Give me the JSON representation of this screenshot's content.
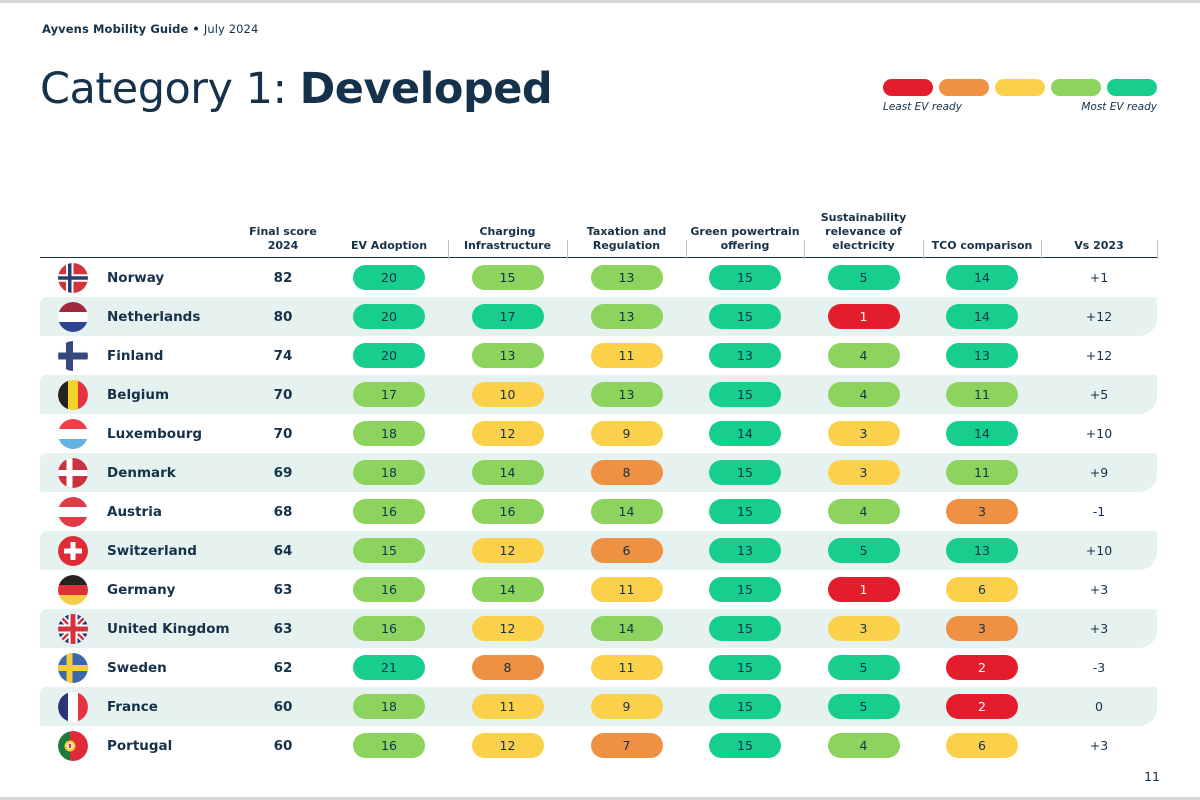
{
  "page": {
    "brand": "Ayvens Mobility Guide",
    "bullet": "•",
    "edition": "July 2024",
    "page_number": "11"
  },
  "title": {
    "prefix": "Category 1: ",
    "emphasis": "Developed"
  },
  "legend": {
    "least": "Least EV ready",
    "most": "Most EV ready",
    "order": [
      "l1",
      "l2",
      "l3",
      "l4",
      "l5"
    ]
  },
  "colors": {
    "l1": "#E41D2D",
    "l2": "#EE9143",
    "l3": "#FBD04B",
    "l4": "#8CD45E",
    "l5": "#17CE8C",
    "navy": "#15324A",
    "stripe": "#E6F2EF"
  },
  "table": {
    "columns": [
      {
        "key": "final_score",
        "lines": [
          "Final score",
          "2024"
        ]
      },
      {
        "key": "ev_adoption",
        "lines": [
          "EV Adoption"
        ]
      },
      {
        "key": "charging_infrastructure",
        "lines": [
          "Charging",
          "Infrastructure"
        ]
      },
      {
        "key": "taxation_and_regulation",
        "lines": [
          "Taxation and",
          "Regulation"
        ]
      },
      {
        "key": "green_powertrain_offering",
        "lines": [
          "Green powertrain",
          "offering"
        ]
      },
      {
        "key": "sustainability_relevance_of_electricity",
        "lines": [
          "Sustainability",
          "relevance of",
          "electricity"
        ]
      },
      {
        "key": "tco_comparison",
        "lines": [
          "TCO comparison"
        ]
      },
      {
        "key": "vs_2023",
        "lines": [
          "Vs 2023"
        ]
      }
    ],
    "rows": [
      {
        "country": "Norway",
        "flag": "norway",
        "final_score": "82",
        "scores": [
          {
            "value": "20",
            "level": "l5"
          },
          {
            "value": "15",
            "level": "l4"
          },
          {
            "value": "13",
            "level": "l4"
          },
          {
            "value": "15",
            "level": "l5"
          },
          {
            "value": "5",
            "level": "l5"
          },
          {
            "value": "14",
            "level": "l5"
          }
        ],
        "vs_2023": "+1"
      },
      {
        "country": "Netherlands",
        "flag": "netherlands",
        "final_score": "80",
        "scores": [
          {
            "value": "20",
            "level": "l5"
          },
          {
            "value": "17",
            "level": "l5"
          },
          {
            "value": "13",
            "level": "l4"
          },
          {
            "value": "15",
            "level": "l5"
          },
          {
            "value": "1",
            "level": "l1"
          },
          {
            "value": "14",
            "level": "l5"
          }
        ],
        "vs_2023": "+12"
      },
      {
        "country": "Finland",
        "flag": "finland",
        "final_score": "74",
        "scores": [
          {
            "value": "20",
            "level": "l5"
          },
          {
            "value": "13",
            "level": "l4"
          },
          {
            "value": "11",
            "level": "l3"
          },
          {
            "value": "13",
            "level": "l5"
          },
          {
            "value": "4",
            "level": "l4"
          },
          {
            "value": "13",
            "level": "l5"
          }
        ],
        "vs_2023": "+12"
      },
      {
        "country": "Belgium",
        "flag": "belgium",
        "final_score": "70",
        "scores": [
          {
            "value": "17",
            "level": "l4"
          },
          {
            "value": "10",
            "level": "l3"
          },
          {
            "value": "13",
            "level": "l4"
          },
          {
            "value": "15",
            "level": "l5"
          },
          {
            "value": "4",
            "level": "l4"
          },
          {
            "value": "11",
            "level": "l4"
          }
        ],
        "vs_2023": "+5"
      },
      {
        "country": "Luxembourg",
        "flag": "luxembourg",
        "final_score": "70",
        "scores": [
          {
            "value": "18",
            "level": "l4"
          },
          {
            "value": "12",
            "level": "l3"
          },
          {
            "value": "9",
            "level": "l3"
          },
          {
            "value": "14",
            "level": "l5"
          },
          {
            "value": "3",
            "level": "l3"
          },
          {
            "value": "14",
            "level": "l5"
          }
        ],
        "vs_2023": "+10"
      },
      {
        "country": "Denmark",
        "flag": "denmark",
        "final_score": "69",
        "scores": [
          {
            "value": "18",
            "level": "l4"
          },
          {
            "value": "14",
            "level": "l4"
          },
          {
            "value": "8",
            "level": "l2"
          },
          {
            "value": "15",
            "level": "l5"
          },
          {
            "value": "3",
            "level": "l3"
          },
          {
            "value": "11",
            "level": "l4"
          }
        ],
        "vs_2023": "+9"
      },
      {
        "country": "Austria",
        "flag": "austria",
        "final_score": "68",
        "scores": [
          {
            "value": "16",
            "level": "l4"
          },
          {
            "value": "16",
            "level": "l4"
          },
          {
            "value": "14",
            "level": "l4"
          },
          {
            "value": "15",
            "level": "l5"
          },
          {
            "value": "4",
            "level": "l4"
          },
          {
            "value": "3",
            "level": "l2"
          }
        ],
        "vs_2023": "-1"
      },
      {
        "country": "Switzerland",
        "flag": "switzerland",
        "final_score": "64",
        "scores": [
          {
            "value": "15",
            "level": "l4"
          },
          {
            "value": "12",
            "level": "l3"
          },
          {
            "value": "6",
            "level": "l2"
          },
          {
            "value": "13",
            "level": "l5"
          },
          {
            "value": "5",
            "level": "l5"
          },
          {
            "value": "13",
            "level": "l5"
          }
        ],
        "vs_2023": "+10"
      },
      {
        "country": "Germany",
        "flag": "germany",
        "final_score": "63",
        "scores": [
          {
            "value": "16",
            "level": "l4"
          },
          {
            "value": "14",
            "level": "l4"
          },
          {
            "value": "11",
            "level": "l3"
          },
          {
            "value": "15",
            "level": "l5"
          },
          {
            "value": "1",
            "level": "l1"
          },
          {
            "value": "6",
            "level": "l3"
          }
        ],
        "vs_2023": "+3"
      },
      {
        "country": "United Kingdom",
        "flag": "uk",
        "final_score": "63",
        "scores": [
          {
            "value": "16",
            "level": "l4"
          },
          {
            "value": "12",
            "level": "l3"
          },
          {
            "value": "14",
            "level": "l4"
          },
          {
            "value": "15",
            "level": "l5"
          },
          {
            "value": "3",
            "level": "l3"
          },
          {
            "value": "3",
            "level": "l2"
          }
        ],
        "vs_2023": "+3"
      },
      {
        "country": "Sweden",
        "flag": "sweden",
        "final_score": "62",
        "scores": [
          {
            "value": "21",
            "level": "l5"
          },
          {
            "value": "8",
            "level": "l2"
          },
          {
            "value": "11",
            "level": "l3"
          },
          {
            "value": "15",
            "level": "l5"
          },
          {
            "value": "5",
            "level": "l5"
          },
          {
            "value": "2",
            "level": "l1"
          }
        ],
        "vs_2023": "-3"
      },
      {
        "country": "France",
        "flag": "france",
        "final_score": "60",
        "scores": [
          {
            "value": "18",
            "level": "l4"
          },
          {
            "value": "11",
            "level": "l3"
          },
          {
            "value": "9",
            "level": "l3"
          },
          {
            "value": "15",
            "level": "l5"
          },
          {
            "value": "5",
            "level": "l5"
          },
          {
            "value": "2",
            "level": "l1"
          }
        ],
        "vs_2023": "0"
      },
      {
        "country": "Portugal",
        "flag": "portugal",
        "final_score": "60",
        "scores": [
          {
            "value": "16",
            "level": "l4"
          },
          {
            "value": "12",
            "level": "l3"
          },
          {
            "value": "7",
            "level": "l2"
          },
          {
            "value": "15",
            "level": "l5"
          },
          {
            "value": "4",
            "level": "l4"
          },
          {
            "value": "6",
            "level": "l3"
          }
        ],
        "vs_2023": "+3"
      }
    ]
  }
}
